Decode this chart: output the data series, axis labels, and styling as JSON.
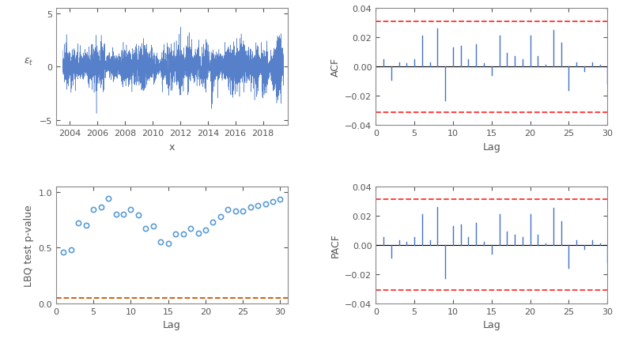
{
  "ts_ylabel": "$\\epsilon_t$",
  "ts_xlabel": "x",
  "ts_xlim": [
    2003.0,
    2019.8
  ],
  "ts_ylim": [
    -5.5,
    5.5
  ],
  "ts_yticks": [
    -5,
    0,
    5
  ],
  "ts_xticks": [
    2004,
    2006,
    2008,
    2010,
    2012,
    2014,
    2016,
    2018
  ],
  "ts_color": "#4472C4",
  "acf_ylabel": "ACF",
  "acf_xlabel": "Lag",
  "acf_ylim": [
    -0.04,
    0.04
  ],
  "acf_yticks": [
    -0.04,
    -0.02,
    0,
    0.02,
    0.04
  ],
  "acf_xlim": [
    0,
    30
  ],
  "acf_xticks": [
    0,
    5,
    10,
    15,
    20,
    25,
    30
  ],
  "acf_conf": 0.031,
  "acf_color": "#4472C4",
  "acf_values": [
    0.005,
    -0.009,
    0.003,
    0.002,
    0.005,
    0.021,
    0.003,
    0.026,
    -0.023,
    0.013,
    0.014,
    0.005,
    0.015,
    0.002,
    -0.006,
    0.021,
    0.009,
    0.007,
    0.005,
    0.021,
    0.007,
    0.001,
    0.025,
    0.016,
    -0.016,
    0.003,
    -0.003,
    0.003,
    0.001,
    -0.012
  ],
  "pacf_ylabel": "PACF",
  "pacf_xlabel": "Lag",
  "pacf_ylim": [
    -0.04,
    0.04
  ],
  "pacf_yticks": [
    -0.04,
    -0.02,
    0,
    0.02,
    0.04
  ],
  "pacf_xlim": [
    0,
    30
  ],
  "pacf_xticks": [
    0,
    5,
    10,
    15,
    20,
    25,
    30
  ],
  "pacf_conf": 0.031,
  "pacf_color": "#4472C4",
  "pacf_values": [
    0.005,
    -0.009,
    0.003,
    0.002,
    0.005,
    0.021,
    0.003,
    0.026,
    -0.023,
    0.013,
    0.014,
    0.005,
    0.015,
    0.002,
    -0.006,
    0.021,
    0.009,
    0.007,
    0.005,
    0.021,
    0.007,
    0.001,
    0.025,
    0.016,
    -0.016,
    0.003,
    -0.003,
    0.003,
    0.001,
    -0.012
  ],
  "lbq_ylabel": "LBQ test p-value",
  "lbq_xlabel": "Lag",
  "lbq_ylim": [
    0,
    1.05
  ],
  "lbq_yticks": [
    0,
    0.5,
    1
  ],
  "lbq_xlim": [
    0,
    31
  ],
  "lbq_xticks": [
    0,
    5,
    10,
    15,
    20,
    25,
    30
  ],
  "lbq_conf": 0.05,
  "lbq_color": "#5B9BD5",
  "lbq_conf_color": "#CC5500",
  "lbq_values": [
    0.46,
    0.48,
    0.72,
    0.7,
    0.84,
    0.86,
    0.94,
    0.8,
    0.8,
    0.84,
    0.79,
    0.67,
    0.69,
    0.55,
    0.54,
    0.62,
    0.62,
    0.67,
    0.63,
    0.66,
    0.73,
    0.78,
    0.84,
    0.83,
    0.83,
    0.86,
    0.88,
    0.89,
    0.91,
    0.93
  ],
  "spine_color": "#888888",
  "tick_color": "#555555",
  "conf_color_red": "#FF3333"
}
